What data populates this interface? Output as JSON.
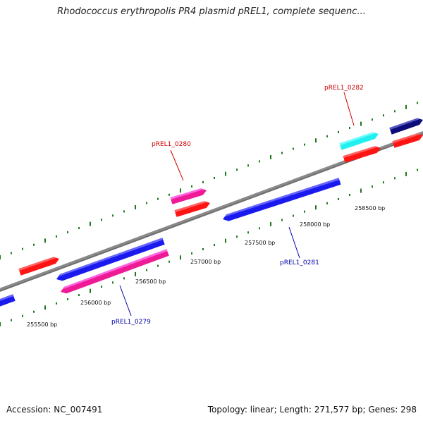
{
  "header": {
    "title": "Rhodococcus erythropolis PR4 plasmid pREL1, complete sequenc..."
  },
  "footer": {
    "accession": "Accession: NC_007491",
    "stats": "Topology: linear; Length: 271,577 bp; Genes: 298"
  },
  "map": {
    "colors": {
      "backbone": "#8a8a8a",
      "tick": "#1d7a1d",
      "red": "#ff1414",
      "blue": "#1a1aee",
      "pink": "#ee1a96",
      "cyan": "#22f0f0",
      "navy": "#0c0c78",
      "tick_label": "#111111",
      "callout_red": "#cc0000",
      "callout_blue": "#0000aa"
    },
    "coordinate_labels": [
      "255500 bp",
      "256000 bp",
      "256500 bp",
      "257000 bp",
      "257500 bp",
      "258000 bp",
      "258500 bp"
    ],
    "gene_labels": [
      {
        "text": "pREL1_0279",
        "color": "blue"
      },
      {
        "text": "pREL1_0280",
        "color": "red"
      },
      {
        "text": "pREL1_0281",
        "color": "blue"
      },
      {
        "text": "pREL1_0282",
        "color": "red"
      }
    ],
    "features": [
      {
        "name": "feature-red-upper-left",
        "color": "red",
        "strand": "+"
      },
      {
        "name": "feature-blue-left-edge",
        "color": "blue",
        "strand": "-"
      },
      {
        "name": "feature-blue-left",
        "color": "blue",
        "strand": "-"
      },
      {
        "name": "feature-pink-0279",
        "color": "pink",
        "strand": "-"
      },
      {
        "name": "feature-pink-0280",
        "color": "pink",
        "strand": "+"
      },
      {
        "name": "feature-red-0280",
        "color": "red",
        "strand": "+"
      },
      {
        "name": "feature-blue-0281",
        "color": "blue",
        "strand": "-"
      },
      {
        "name": "feature-cyan-0282",
        "color": "cyan",
        "strand": "+"
      },
      {
        "name": "feature-red-0282",
        "color": "red",
        "strand": "+"
      },
      {
        "name": "feature-navy-right",
        "color": "navy",
        "strand": "+"
      },
      {
        "name": "feature-red-right-edge",
        "color": "red",
        "strand": "+"
      }
    ]
  }
}
